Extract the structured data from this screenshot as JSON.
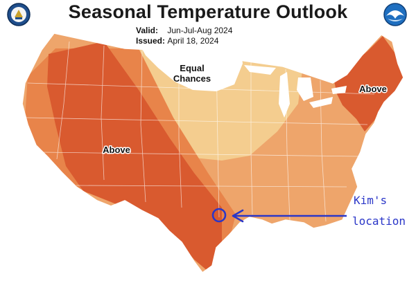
{
  "title": "Seasonal Temperature Outlook",
  "valid_label": "Valid:",
  "valid_value": "Jun-Jul-Aug 2024",
  "issued_label": "Issued:",
  "issued_value": "April 18, 2024",
  "logos": {
    "left": "department-of-commerce-seal",
    "right": "noaa-logo"
  },
  "regions": {
    "above_west": "Above",
    "above_northeast": "Above",
    "equal_chances_line1": "Equal",
    "equal_chances_line2": "Chances"
  },
  "annotation": {
    "line1": "Kim's",
    "line2": "location",
    "color": "#2a36c8"
  },
  "colors": {
    "equal_chances": "#ffffff",
    "above_33_40": "#f4cd8f",
    "above_40_50": "#eea56b",
    "above_50_60": "#e8844a",
    "above_60_70": "#d95a2f",
    "above_70_80": "#c54624"
  }
}
